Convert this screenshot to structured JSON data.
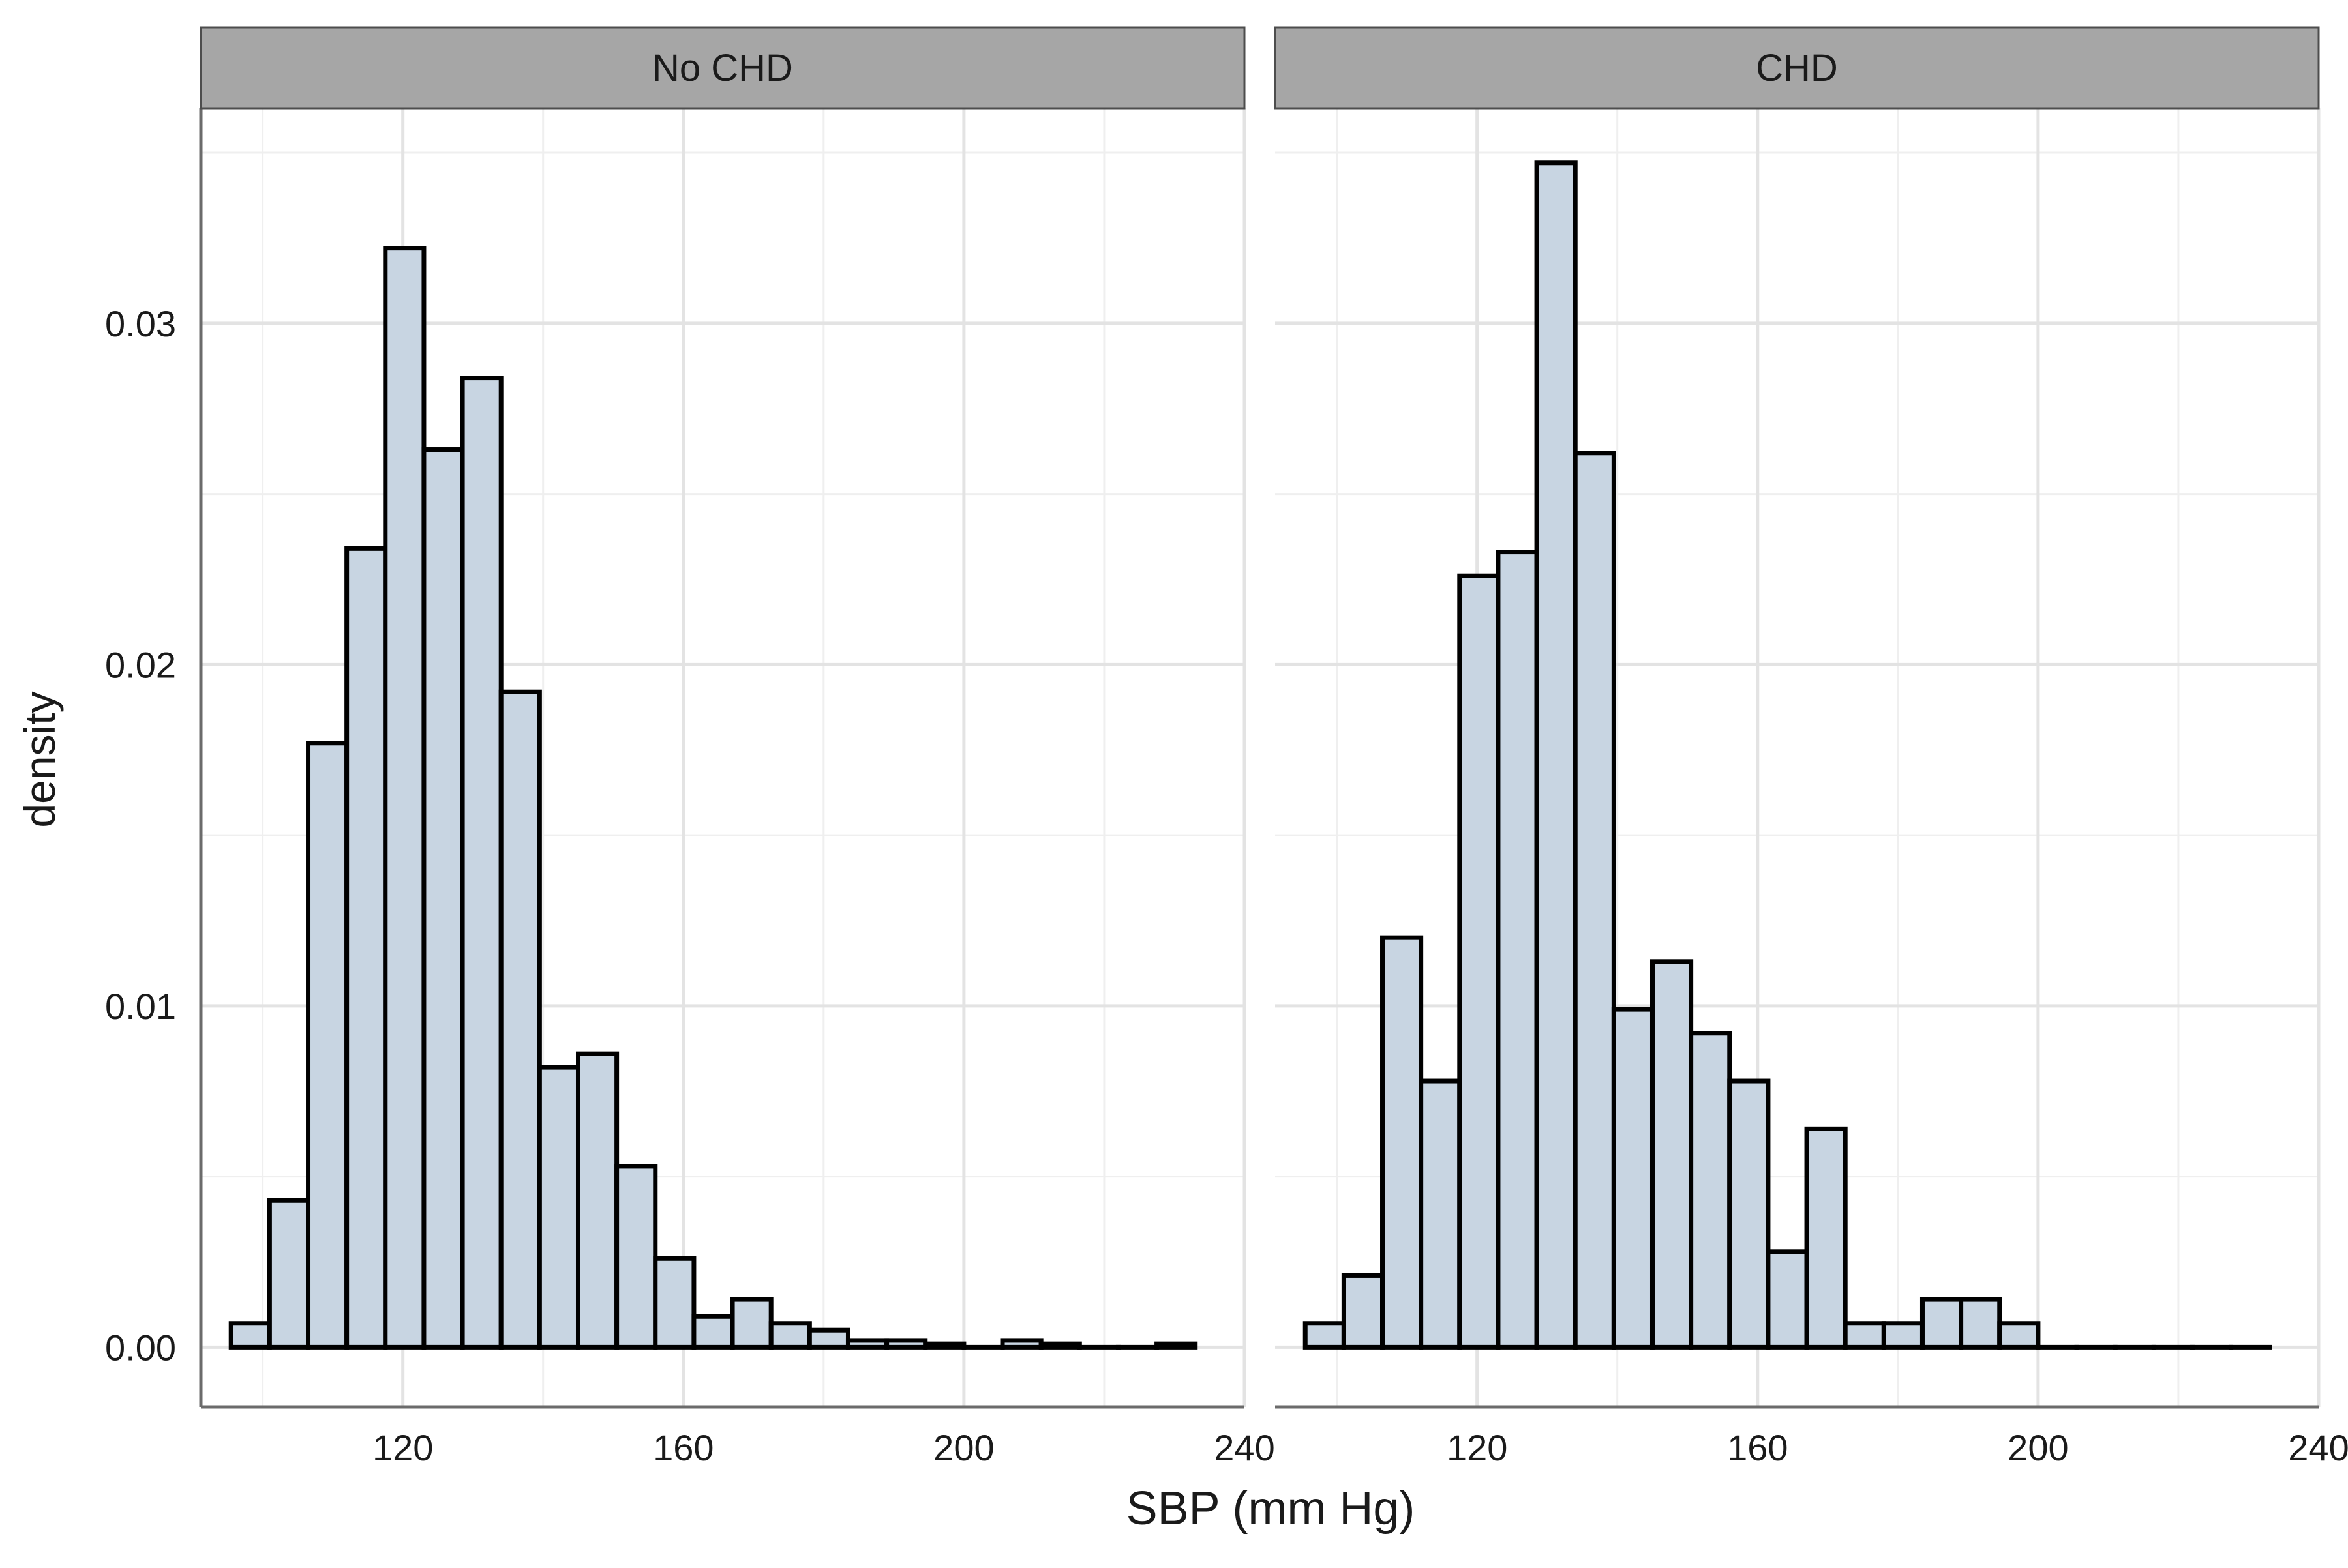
{
  "chart_data": {
    "type": "bar",
    "subtype": "faceted-histogram",
    "xlabel": "SBP (mm Hg)",
    "ylabel": "density",
    "xlim": [
      91.2,
      240
    ],
    "ylim": [
      -0.00175,
      0.0363
    ],
    "x_ticks": [
      120,
      160,
      200,
      240
    ],
    "y_ticks": [
      0.0,
      0.01,
      0.02,
      0.03
    ],
    "y_tick_labels": [
      "0.00",
      "0.01",
      "0.02",
      "0.03"
    ],
    "bin_start": 95.5,
    "bin_width": 5.5,
    "grid": true,
    "colors": {
      "bar_fill": "#c8d5e2",
      "bar_stroke": "#000000",
      "strip_fill": "#a6a6a6",
      "strip_stroke": "#4d4d4d",
      "grid_major": "#e3e3e3",
      "grid_minor": "#efefef",
      "axis": "#6b6b6b",
      "text": "#1a1a1a"
    },
    "facets": [
      {
        "label": "No CHD",
        "values": [
          0.0007,
          0.0043,
          0.0177,
          0.0234,
          0.0322,
          0.0263,
          0.0284,
          0.0192,
          0.0082,
          0.0086,
          0.0053,
          0.0026,
          0.0009,
          0.0014,
          0.0007,
          0.0005,
          0.0002,
          0.0002,
          0.0001,
          0.0,
          0.0002,
          0.0001,
          0.0,
          0.0,
          0.0001
        ]
      },
      {
        "label": "CHD",
        "values": [
          0.0007,
          0.0021,
          0.012,
          0.0078,
          0.0226,
          0.0233,
          0.0347,
          0.0262,
          0.0099,
          0.0113,
          0.0092,
          0.0078,
          0.0028,
          0.0064,
          0.0007,
          0.0007,
          0.0014,
          0.0014,
          0.0007,
          0.0,
          0.0,
          0.0,
          0.0,
          0.0,
          0.0
        ]
      }
    ]
  }
}
